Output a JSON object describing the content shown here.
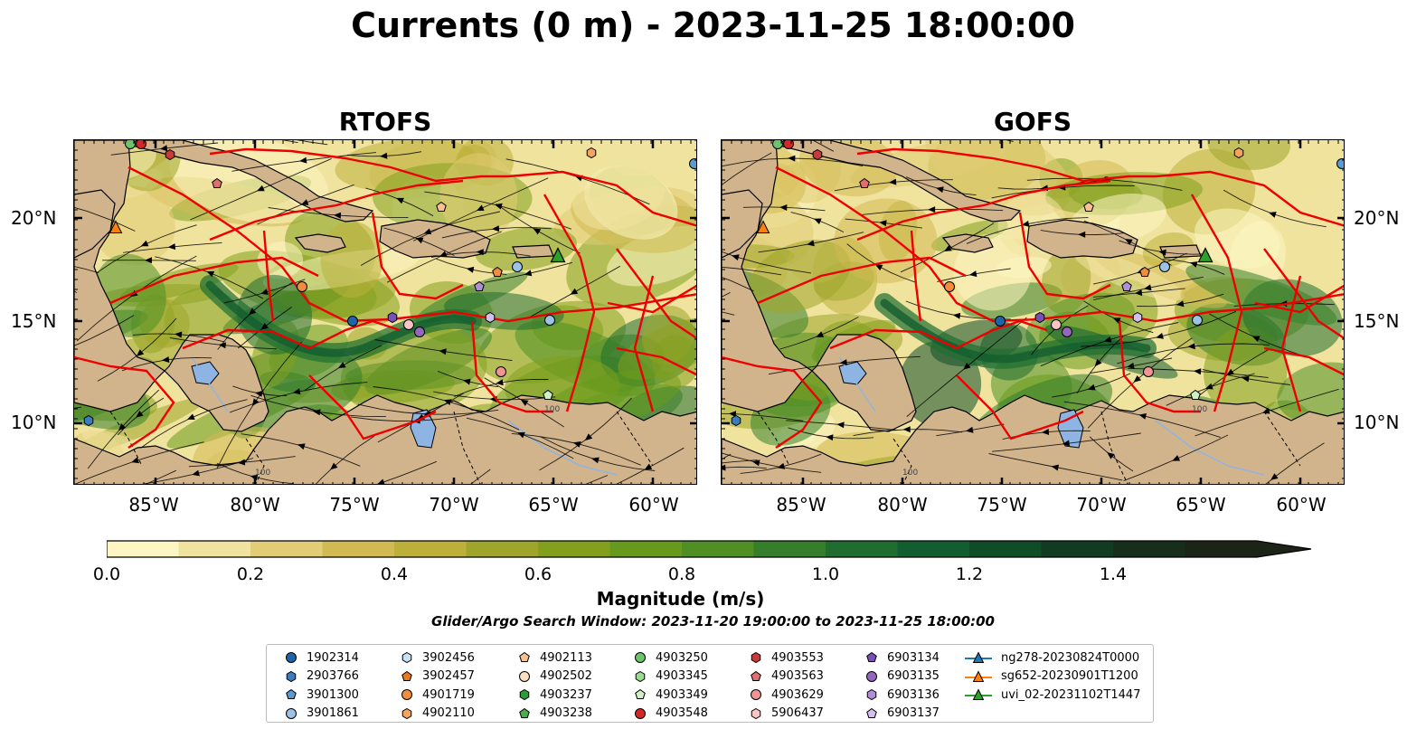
{
  "title": "Currents (0 m) - 2023-11-25 18:00:00",
  "panels": [
    {
      "title": "RTOFS"
    },
    {
      "title": "GOFS"
    }
  ],
  "lat_labels": [
    "20°N",
    "15°N",
    "10°N"
  ],
  "lon_labels": [
    "85°W",
    "80°W",
    "75°W",
    "70°W",
    "65°W",
    "60°W"
  ],
  "contour_label": "100",
  "colorbar": {
    "label": "Magnitude (m/s)",
    "ticks": [
      "0.0",
      "0.2",
      "0.4",
      "0.6",
      "0.8",
      "1.0",
      "1.2",
      "1.4"
    ],
    "colors": [
      "#fdf6c3",
      "#f0e3a0",
      "#e2cc75",
      "#d2ba52",
      "#bcb03a",
      "#9fa52a",
      "#82a01e",
      "#679a1c",
      "#4f8f24",
      "#357f2a",
      "#1f6e30",
      "#135e30",
      "#0f4d28",
      "#123c21",
      "#172e1b",
      "#1c2317"
    ]
  },
  "search_window": "Glider/Argo Search Window: 2023-11-20 19:00:00 to 2023-11-25 18:00:00",
  "legend": {
    "columns": [
      [
        {
          "label": "1902314",
          "marker": "circle",
          "color": "#1f64a8"
        },
        {
          "label": "2903766",
          "marker": "hexagon",
          "color": "#3a7dbf"
        },
        {
          "label": "3901300",
          "marker": "pentagon",
          "color": "#5b9bd5"
        },
        {
          "label": "3901861",
          "marker": "circle",
          "color": "#9cc3e6"
        }
      ],
      [
        {
          "label": "3902456",
          "marker": "hexagon",
          "color": "#c6e2f7"
        },
        {
          "label": "3902457",
          "marker": "pentagon",
          "color": "#e8791e"
        },
        {
          "label": "4901719",
          "marker": "circle",
          "color": "#f28e3b"
        },
        {
          "label": "4902110",
          "marker": "hexagon",
          "color": "#f4a45c"
        }
      ],
      [
        {
          "label": "4902113",
          "marker": "pentagon",
          "color": "#f7c290"
        },
        {
          "label": "4902502",
          "marker": "circle",
          "color": "#fbe0c4"
        },
        {
          "label": "4903237",
          "marker": "hexagon",
          "color": "#2e9a3a"
        },
        {
          "label": "4903238",
          "marker": "pentagon",
          "color": "#4cae4c"
        }
      ],
      [
        {
          "label": "4903250",
          "marker": "circle",
          "color": "#6cc46a"
        },
        {
          "label": "4903345",
          "marker": "hexagon",
          "color": "#9edb92"
        },
        {
          "label": "4903349",
          "marker": "pentagon",
          "color": "#cdf0c4"
        },
        {
          "label": "4903548",
          "marker": "circle",
          "color": "#d62728"
        }
      ],
      [
        {
          "label": "4903553",
          "marker": "hexagon",
          "color": "#c93a3a"
        },
        {
          "label": "4903563",
          "marker": "pentagon",
          "color": "#e07070"
        },
        {
          "label": "4903629",
          "marker": "circle",
          "color": "#f09494"
        },
        {
          "label": "5906437",
          "marker": "hexagon",
          "color": "#f8c4c4"
        }
      ],
      [
        {
          "label": "6903134",
          "marker": "pentagon",
          "color": "#7b4fb8"
        },
        {
          "label": "6903135",
          "marker": "circle",
          "color": "#9467bd"
        },
        {
          "label": "6903136",
          "marker": "hexagon",
          "color": "#b08fd6"
        },
        {
          "label": "6903137",
          "marker": "pentagon",
          "color": "#d4c0ef"
        }
      ],
      [
        {
          "label": "ng278-20230824T0000",
          "marker": "triangle",
          "color": "#1f77b4"
        },
        {
          "label": "sg652-20230901T1200",
          "marker": "triangle",
          "color": "#ff7f0e"
        },
        {
          "label": "uvi_02-20231102T1447",
          "marker": "triangle",
          "color": "#2ca02c"
        }
      ]
    ]
  }
}
